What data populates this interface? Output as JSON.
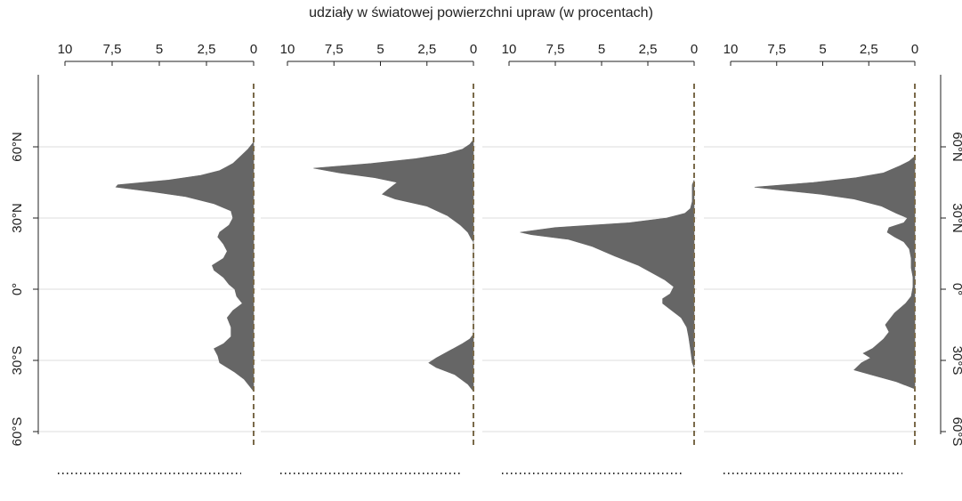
{
  "chart_data": {
    "type": "area",
    "title": "udziały w światowej powierzchni upraw (w procentach)",
    "x_ticks": [
      "10",
      "7,5",
      "5",
      "2,5",
      "0"
    ],
    "x_tick_values": [
      10,
      7.5,
      5,
      2.5,
      0
    ],
    "xlim": [
      0,
      10
    ],
    "x_axis_reversed": true,
    "ylim": [
      -75,
      90
    ],
    "y_ticks": [
      "60°S",
      "30°S",
      "0°",
      "30°N",
      "60°N"
    ],
    "y_tick_values": [
      -60,
      -30,
      0,
      30,
      60
    ],
    "grid": true,
    "fill_color": "#666666",
    "zero_line_color": "#7a6a4a",
    "panels": [
      {
        "label": "",
        "x_label": "",
        "y_label": "",
        "profile": [
          [
            -43,
            0
          ],
          [
            -41,
            0.2
          ],
          [
            -38,
            0.5
          ],
          [
            -35,
            1
          ],
          [
            -31,
            1.8
          ],
          [
            -28,
            1.9
          ],
          [
            -25,
            2.1
          ],
          [
            -23,
            1.6
          ],
          [
            -20,
            1.2
          ],
          [
            -16,
            1.2
          ],
          [
            -12,
            1.4
          ],
          [
            -9,
            1.1
          ],
          [
            -6,
            0.6
          ],
          [
            -3,
            0.9
          ],
          [
            0,
            1
          ],
          [
            2,
            1.3
          ],
          [
            5,
            1.6
          ],
          [
            8,
            2.1
          ],
          [
            10,
            2.2
          ],
          [
            13,
            1.6
          ],
          [
            16,
            1.4
          ],
          [
            19,
            1.6
          ],
          [
            22,
            1.9
          ],
          [
            24,
            1.8
          ],
          [
            27,
            1.3
          ],
          [
            30,
            1.1
          ],
          [
            33,
            1.2
          ],
          [
            36,
            2.1
          ],
          [
            39,
            3.6
          ],
          [
            41,
            5.3
          ],
          [
            43,
            7.3
          ],
          [
            44,
            7.2
          ],
          [
            46,
            4.5
          ],
          [
            48,
            2.8
          ],
          [
            50,
            1.8
          ],
          [
            53,
            1.1
          ],
          [
            56,
            0.7
          ],
          [
            59,
            0.3
          ],
          [
            61,
            0.1
          ],
          [
            62,
            0
          ]
        ]
      },
      {
        "label": "",
        "x_label": "",
        "y_label": "",
        "profile": [
          [
            -43,
            0
          ],
          [
            -40,
            0.3
          ],
          [
            -36,
            1
          ],
          [
            -33,
            2
          ],
          [
            -31,
            2.4
          ],
          [
            -29,
            2
          ],
          [
            -26,
            1.3
          ],
          [
            -23,
            0.6
          ],
          [
            -21,
            0.2
          ],
          [
            -19,
            0
          ],
          [
            20,
            0
          ],
          [
            21,
            0.1
          ],
          [
            24,
            0.3
          ],
          [
            27,
            0.7
          ],
          [
            31,
            1.4
          ],
          [
            35,
            2.5
          ],
          [
            38,
            4.2
          ],
          [
            40,
            4.9
          ],
          [
            42,
            4.6
          ],
          [
            45,
            4.1
          ],
          [
            47,
            5.3
          ],
          [
            49,
            7.2
          ],
          [
            51,
            8.6
          ],
          [
            53,
            5.5
          ],
          [
            55,
            3.1
          ],
          [
            57,
            1.5
          ],
          [
            59,
            0.6
          ],
          [
            61,
            0.2
          ],
          [
            63,
            0
          ]
        ]
      },
      {
        "label": "",
        "x_label": "",
        "y_label": "",
        "profile": [
          [
            -33,
            0
          ],
          [
            -31,
            0.1
          ],
          [
            -25,
            0.2
          ],
          [
            -20,
            0.3
          ],
          [
            -16,
            0.4
          ],
          [
            -12,
            0.7
          ],
          [
            -9,
            1.2
          ],
          [
            -6,
            1.7
          ],
          [
            -4,
            1.7
          ],
          [
            -2,
            1.3
          ],
          [
            1,
            1.1
          ],
          [
            4,
            1.6
          ],
          [
            7,
            2.3
          ],
          [
            10,
            3
          ],
          [
            14,
            4.3
          ],
          [
            18,
            5.5
          ],
          [
            21,
            6.8
          ],
          [
            23,
            8.8
          ],
          [
            24,
            9.4
          ],
          [
            26,
            7.5
          ],
          [
            28,
            3.5
          ],
          [
            30,
            1.5
          ],
          [
            32,
            0.5
          ],
          [
            34,
            0.2
          ],
          [
            37,
            0.1
          ],
          [
            40,
            0.1
          ],
          [
            44,
            0.1
          ],
          [
            46,
            0
          ]
        ]
      },
      {
        "label": "",
        "x_label": "",
        "y_label": "",
        "profile": [
          [
            -42,
            0
          ],
          [
            -39,
            1
          ],
          [
            -36,
            2.4
          ],
          [
            -34,
            3.3
          ],
          [
            -31,
            2.9
          ],
          [
            -29,
            2.4
          ],
          [
            -27,
            2.8
          ],
          [
            -25,
            2.3
          ],
          [
            -21,
            1.7
          ],
          [
            -18,
            1.4
          ],
          [
            -15,
            1.6
          ],
          [
            -13,
            1.4
          ],
          [
            -10,
            1.1
          ],
          [
            -6,
            0.5
          ],
          [
            -3,
            0.2
          ],
          [
            1,
            0.1
          ],
          [
            5,
            0.1
          ],
          [
            9,
            0.2
          ],
          [
            13,
            0.2
          ],
          [
            17,
            0.3
          ],
          [
            20,
            0.6
          ],
          [
            22,
            1.1
          ],
          [
            24,
            1.5
          ],
          [
            26,
            1.4
          ],
          [
            28,
            0.6
          ],
          [
            30,
            0.4
          ],
          [
            32,
            1
          ],
          [
            35,
            1.8
          ],
          [
            38,
            3.3
          ],
          [
            40,
            5.1
          ],
          [
            42,
            7.6
          ],
          [
            43,
            8.7
          ],
          [
            45,
            5.5
          ],
          [
            47,
            3.2
          ],
          [
            49,
            1.7
          ],
          [
            52,
            0.8
          ],
          [
            54,
            0.3
          ],
          [
            56,
            0
          ]
        ]
      }
    ]
  }
}
